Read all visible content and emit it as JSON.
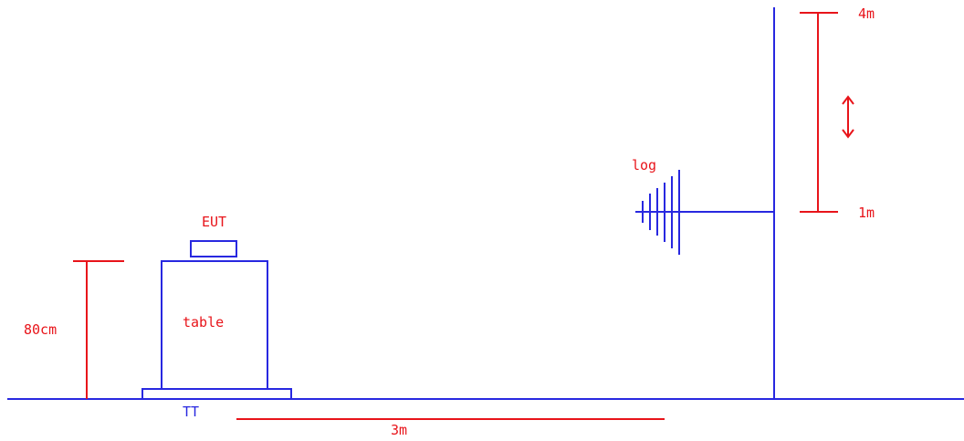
{
  "labels": {
    "antenna_max_height": "4m",
    "antenna_min_height": "1m",
    "antenna_type": "log",
    "eut": "EUT",
    "table_height": "80cm",
    "table": "table",
    "turntable": "TT",
    "measurement_distance": "3m"
  },
  "colors": {
    "equipment": "#2828e0",
    "dimension": "#e8141a",
    "background": "#ffffff"
  },
  "icons": {
    "height_scan": "double-arrow-vertical-icon"
  }
}
